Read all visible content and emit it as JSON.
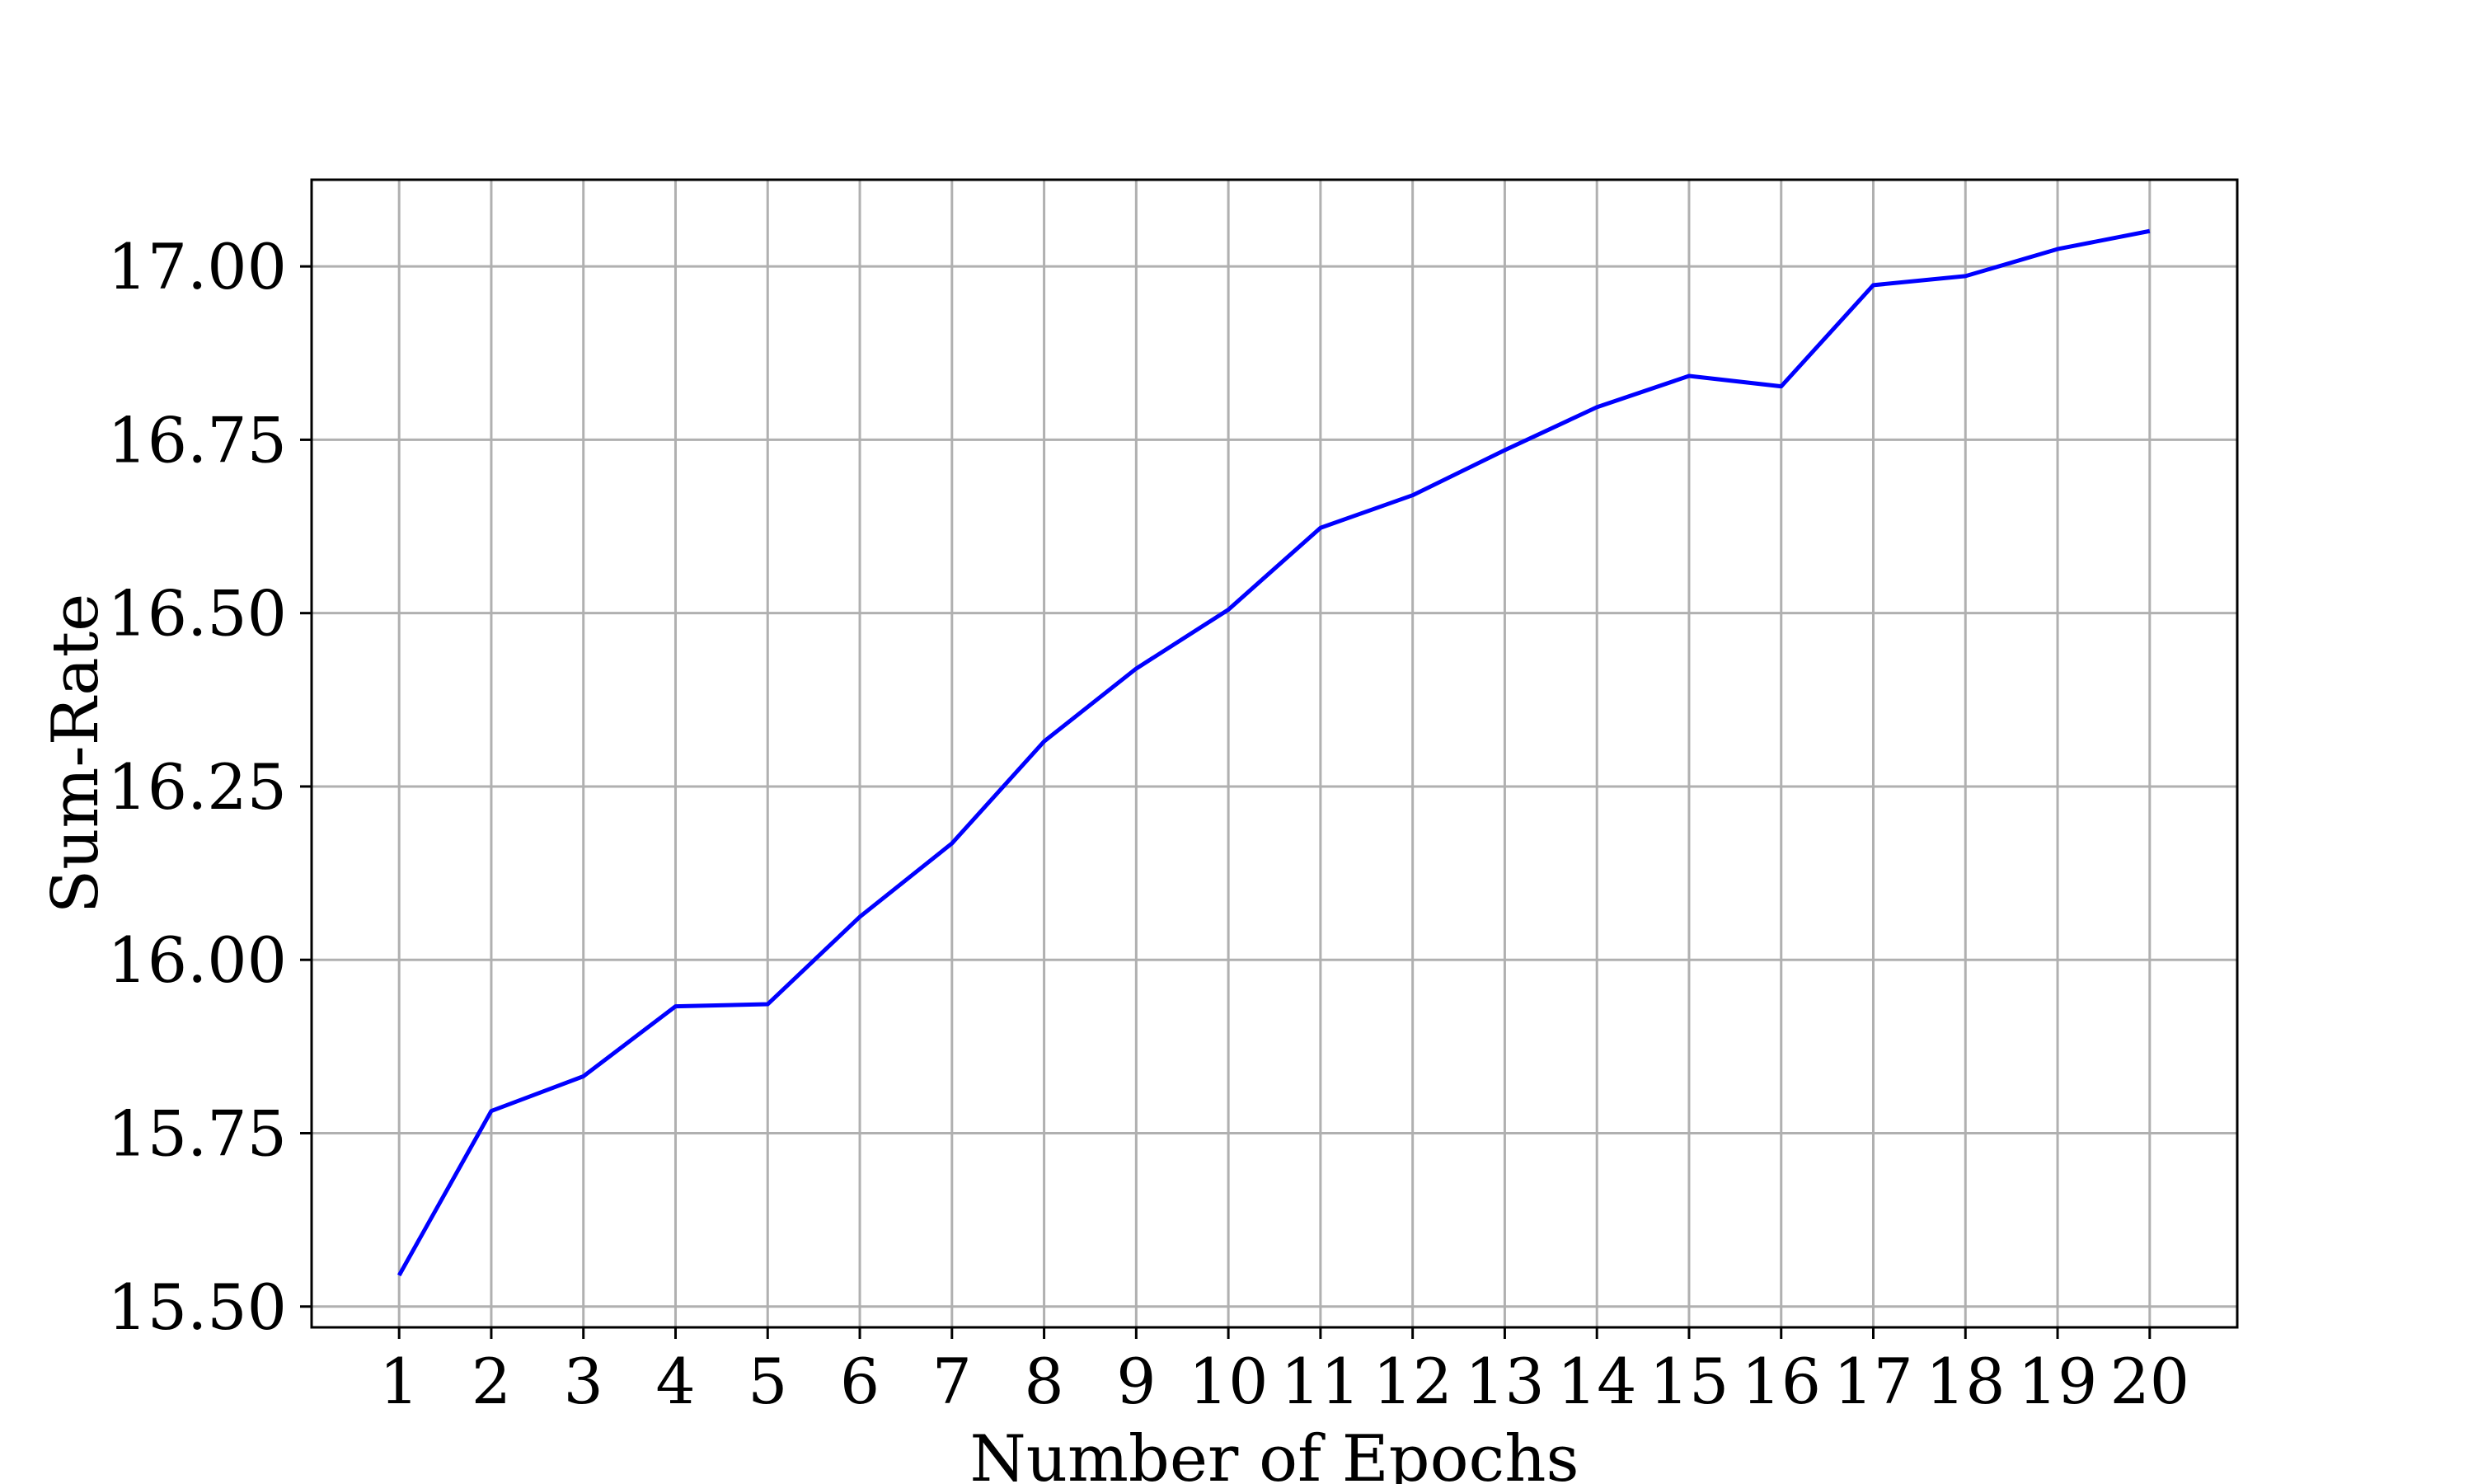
{
  "chart_data": {
    "type": "line",
    "title": "",
    "xlabel": "Number of Epochs",
    "ylabel": "Sum-Rate",
    "x": [
      1,
      2,
      3,
      4,
      5,
      6,
      7,
      8,
      9,
      10,
      11,
      12,
      13,
      14,
      15,
      16,
      17,
      18,
      19,
      20
    ],
    "series": [
      {
        "name": "",
        "color": "#0000ff",
        "values": [
          15.545,
          15.782,
          15.832,
          15.933,
          15.936,
          16.062,
          16.168,
          16.315,
          16.42,
          16.505,
          16.623,
          16.67,
          16.735,
          16.797,
          16.842,
          16.827,
          16.973,
          16.986,
          17.025,
          17.051
        ]
      }
    ],
    "xticks": [
      "1",
      "2",
      "3",
      "4",
      "5",
      "6",
      "7",
      "8",
      "9",
      "10",
      "11",
      "12",
      "13",
      "14",
      "15",
      "16",
      "17",
      "18",
      "19",
      "20"
    ],
    "yticks": [
      "15.50",
      "15.75",
      "16.00",
      "16.25",
      "16.50",
      "16.75",
      "17.00"
    ],
    "ytick_values": [
      15.5,
      15.75,
      16.0,
      16.25,
      16.5,
      16.75,
      17.0
    ],
    "xlim": [
      0.05,
      20.95
    ],
    "ylim": [
      15.47,
      17.125
    ],
    "grid": true,
    "legend": "none"
  }
}
